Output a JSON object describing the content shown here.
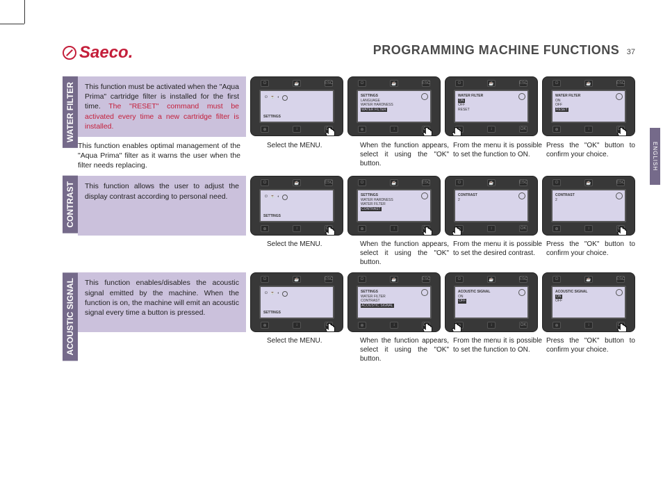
{
  "brand": "Saeco",
  "page_title": "PROGRAMMING MACHINE FUNCTIONS",
  "page_number": "37",
  "language_tab": "ENGLISH",
  "colors": {
    "brand_red": "#c41e3a",
    "lavender_band": "#cbc1dc",
    "sidebar_purple": "#756a8a",
    "device_body": "#383838",
    "device_screen": "#d8d4ea",
    "text": "#222222"
  },
  "sections": [
    {
      "label": "WATER FILTER",
      "intro": "This function must be activated when the \"Aqua Prima\" cartridge filter is installed for the first time. ",
      "intro_warn": "The \"RESET\" command must be activated every time a new cartridge filter is installed.",
      "subtext": "This function enables optimal management of the \"Aqua Prima\" filter as it warns the user when the filter needs replacing.",
      "screens": [
        {
          "type": "menu",
          "label": "SETTINGS",
          "caption": "Select the MENU.",
          "hand": "right"
        },
        {
          "type": "list",
          "title": "SETTINGS",
          "lines": [
            "LANGUAGE",
            "WATER HARDNESS"
          ],
          "highlight": "WATER FILTER",
          "caption": "When the function appears, select it using the \"OK\" button.",
          "hand": "right"
        },
        {
          "type": "list",
          "title": "WATER FILTER",
          "lines": [],
          "highlight": "ON",
          "after": [
            "OFF",
            "RESET"
          ],
          "caption": "From the menu it is possible to set the function to ON.",
          "hand": "left"
        },
        {
          "type": "list",
          "title": "WATER FILTER",
          "lines": [
            "ON",
            "OFF"
          ],
          "highlight": "RESET",
          "caption": "Press the \"OK\" button to confirm your choice.",
          "hand": "right"
        }
      ]
    },
    {
      "label": "CONTRAST",
      "intro": "This function allows the user to adjust the display contrast according to personal need.",
      "intro_warn": "",
      "subtext": "",
      "screens": [
        {
          "type": "menu",
          "label": "SETTINGS",
          "caption": "Select the MENU.",
          "hand": "right"
        },
        {
          "type": "list",
          "title": "SETTINGS",
          "lines": [
            "WATER HARDNESS",
            "WATER FILTER"
          ],
          "highlight": "CONTRAST",
          "caption": "When the function appears, select it using the \"OK\" button.",
          "hand": "right"
        },
        {
          "type": "list",
          "title": "CONTRAST",
          "lines": [
            "2"
          ],
          "highlight": "",
          "caption": "From the menu it is possible to set the desired contrast.",
          "hand": "left"
        },
        {
          "type": "list",
          "title": "CONTRAST",
          "lines": [
            "2"
          ],
          "highlight": "",
          "caption": "Press the \"OK\" button to confirm your choice.",
          "hand": "right"
        }
      ]
    },
    {
      "label": "ACOUSTIC SIGNAL",
      "intro": "This function enables/disables the acoustic signal emitted by the machine. When the function is on, the machine will emit an acoustic signal every time a button is pressed.",
      "intro_warn": "",
      "subtext": "",
      "screens": [
        {
          "type": "menu",
          "label": "SETTINGS",
          "caption": "Select the MENU.",
          "hand": "right"
        },
        {
          "type": "list",
          "title": "SETTINGS",
          "lines": [
            "WATER FILTER",
            "CONTRAST"
          ],
          "highlight": "ACOUSTIC SIGNAL",
          "caption": "When the function appears, select it using the \"OK\" button.",
          "hand": "right"
        },
        {
          "type": "list",
          "title": "ACOUSTIC SIGNAL",
          "lines": [
            "",
            "ON"
          ],
          "highlight": "OFF",
          "caption": "From the menu it is possible to set the function to ON.",
          "hand": "left"
        },
        {
          "type": "list",
          "title": "ACOUSTIC SIGNAL",
          "lines": [],
          "highlight": "ON",
          "after": [
            "OFF"
          ],
          "caption": "Press the \"OK\" button to confirm your choice.",
          "hand": "right"
        }
      ]
    }
  ],
  "device_buttons_top": [
    "⏻",
    "☕",
    "ESC"
  ],
  "device_buttons_bot": [
    "⊕",
    "↕",
    "OK"
  ]
}
